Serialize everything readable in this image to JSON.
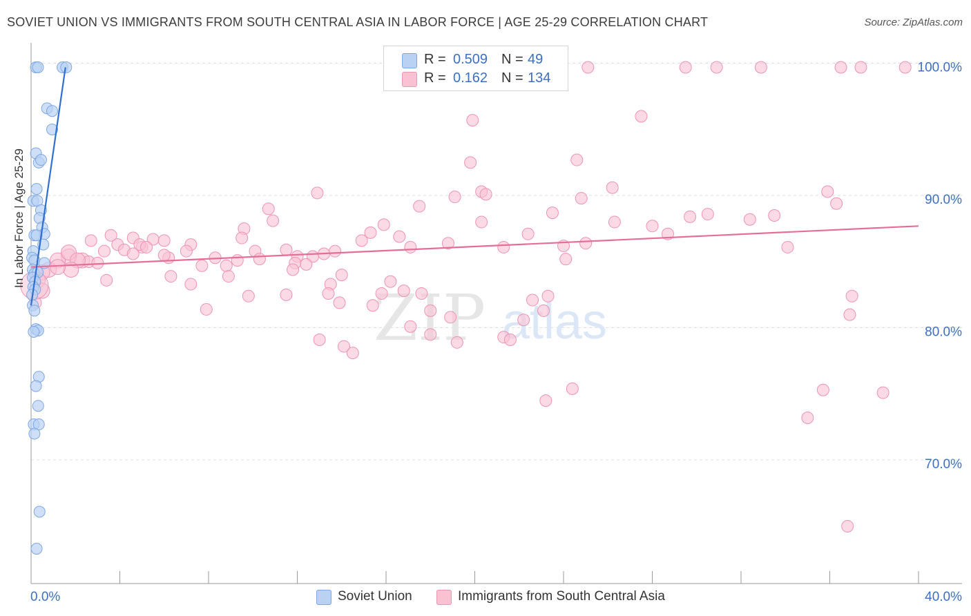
{
  "title": "SOVIET UNION VS IMMIGRANTS FROM SOUTH CENTRAL ASIA IN LABOR FORCE | AGE 25-29 CORRELATION CHART",
  "source": "Source: ZipAtlas.com",
  "watermark": {
    "zip": "ZIP",
    "atlas": "atlas"
  },
  "legend_top": {
    "r_label": "R =",
    "n_label": "N =",
    "rows": [
      {
        "series": "Soviet Union",
        "r": "0.509",
        "n": "49"
      },
      {
        "series": "Immigrants from South Central Asia",
        "r": "0.162",
        "n": "134"
      }
    ]
  },
  "colors": {
    "blue_fill": "#b9d1f3",
    "blue_stroke": "#7da7e2",
    "blue_line": "#2f6fd0",
    "pink_fill": "#f8c2d3",
    "pink_stroke": "#ee93b1",
    "pink_line": "#e46e98",
    "value_text": "#3b6fc4",
    "grid": "#dddddd",
    "axis": "#999999"
  },
  "chart_data": {
    "type": "scatter",
    "title": "SOVIET UNION VS IMMIGRANTS FROM SOUTH CENTRAL ASIA IN LABOR FORCE | AGE 25-29 CORRELATION CHART",
    "xlabel": "",
    "ylabel": "In Labor Force | Age 25-29",
    "xlim": [
      0,
      40
    ],
    "ylim": [
      60.5,
      101.5
    ],
    "x_tick_labels": [
      "0.0%",
      "40.0%"
    ],
    "y_ticks": [
      70,
      80,
      90,
      100
    ],
    "y_tick_labels": [
      "70.0%",
      "80.0%",
      "90.0%",
      "100.0%"
    ],
    "grid": true,
    "legend_position": "bottom",
    "series": [
      {
        "name": "Soviet Union",
        "color": "#7da7e2",
        "trend": {
          "x": [
            0.0,
            1.55
          ],
          "y": [
            82.0,
            100.0
          ]
        },
        "points": [
          [
            0.22,
            100.0
          ],
          [
            0.31,
            100.0
          ],
          [
            1.42,
            100.0
          ],
          [
            1.58,
            100.0
          ],
          [
            0.72,
            96.9
          ],
          [
            0.95,
            96.7
          ],
          [
            0.95,
            95.3
          ],
          [
            0.22,
            93.5
          ],
          [
            0.35,
            92.8
          ],
          [
            0.45,
            93.0
          ],
          [
            0.25,
            90.8
          ],
          [
            0.1,
            89.9
          ],
          [
            0.28,
            89.9
          ],
          [
            0.45,
            89.2
          ],
          [
            0.38,
            88.6
          ],
          [
            0.5,
            87.9
          ],
          [
            0.6,
            87.4
          ],
          [
            0.15,
            87.3
          ],
          [
            0.25,
            87.3
          ],
          [
            0.55,
            86.6
          ],
          [
            0.1,
            86.1
          ],
          [
            0.05,
            85.6
          ],
          [
            0.15,
            85.4
          ],
          [
            0.6,
            85.2
          ],
          [
            0.08,
            84.7
          ],
          [
            0.15,
            84.4
          ],
          [
            0.3,
            84.5
          ],
          [
            0.08,
            84.1
          ],
          [
            0.18,
            83.8
          ],
          [
            0.1,
            83.4
          ],
          [
            0.18,
            83.2
          ],
          [
            0.05,
            82.8
          ],
          [
            0.08,
            82.0
          ],
          [
            0.15,
            81.6
          ],
          [
            0.22,
            80.2
          ],
          [
            0.32,
            80.1
          ],
          [
            0.12,
            80.0
          ],
          [
            0.35,
            76.6
          ],
          [
            0.22,
            75.9
          ],
          [
            0.32,
            74.4
          ],
          [
            0.12,
            73.0
          ],
          [
            0.35,
            73.0
          ],
          [
            0.15,
            72.3
          ],
          [
            0.38,
            66.4
          ],
          [
            0.25,
            63.6
          ]
        ]
      },
      {
        "name": "Immigrants from South Central Asia",
        "color": "#ee93b1",
        "trend": {
          "x": [
            0.0,
            40.0
          ],
          "y": [
            84.9,
            88.0
          ]
        },
        "points": [
          [
            25.1,
            100.0
          ],
          [
            29.5,
            100.0
          ],
          [
            30.9,
            100.0
          ],
          [
            32.9,
            100.0
          ],
          [
            36.5,
            100.0
          ],
          [
            37.4,
            100.0
          ],
          [
            39.4,
            100.0
          ],
          [
            19.9,
            96.0
          ],
          [
            27.5,
            96.3
          ],
          [
            19.8,
            92.8
          ],
          [
            24.6,
            93.0
          ],
          [
            12.9,
            90.5
          ],
          [
            19.1,
            90.2
          ],
          [
            20.3,
            90.6
          ],
          [
            20.5,
            90.4
          ],
          [
            24.8,
            90.1
          ],
          [
            26.2,
            90.9
          ],
          [
            35.9,
            90.6
          ],
          [
            36.3,
            89.7
          ],
          [
            10.7,
            89.3
          ],
          [
            17.5,
            89.5
          ],
          [
            23.5,
            89.0
          ],
          [
            29.7,
            88.7
          ],
          [
            30.5,
            88.9
          ],
          [
            32.4,
            88.5
          ],
          [
            33.5,
            88.8
          ],
          [
            20.3,
            88.3
          ],
          [
            10.9,
            88.4
          ],
          [
            15.9,
            88.1
          ],
          [
            26.3,
            88.3
          ],
          [
            28,
            88.0
          ],
          [
            9.6,
            87.8
          ],
          [
            15.3,
            87.5
          ],
          [
            22.4,
            87.4
          ],
          [
            28.7,
            87.4
          ],
          [
            3.6,
            87.3
          ],
          [
            4.6,
            87.1
          ],
          [
            5.5,
            87.0
          ],
          [
            9.5,
            87.1
          ],
          [
            14.9,
            86.9
          ],
          [
            16.6,
            87.2
          ],
          [
            18.8,
            86.7
          ],
          [
            25.0,
            86.7
          ],
          [
            2.7,
            86.9
          ],
          [
            3.9,
            86.6
          ],
          [
            5.0,
            86.4
          ],
          [
            6.0,
            86.9
          ],
          [
            7.2,
            86.6
          ],
          [
            21.3,
            86.4
          ],
          [
            24.0,
            86.5
          ],
          [
            34.1,
            86.4
          ],
          [
            3.3,
            86.1
          ],
          [
            7.0,
            86.1
          ],
          [
            10.1,
            86.1
          ],
          [
            13.7,
            86.1
          ],
          [
            11.5,
            86.2
          ],
          [
            17.1,
            86.4
          ],
          [
            4.2,
            86.2
          ],
          [
            4.9,
            86.6
          ],
          [
            5.2,
            86.4
          ],
          [
            6.2,
            85.6
          ],
          [
            4.6,
            85.9
          ],
          [
            6.0,
            85.8
          ],
          [
            12.0,
            85.7
          ],
          [
            12.7,
            85.7
          ],
          [
            13.2,
            85.9
          ],
          [
            2.3,
            85.4
          ],
          [
            2.6,
            85.3
          ],
          [
            3.0,
            85.2
          ],
          [
            1.7,
            85.7
          ],
          [
            1.2,
            85.4
          ],
          [
            1.7,
            86.0
          ],
          [
            2.1,
            85.4
          ],
          [
            8.3,
            85.6
          ],
          [
            9.3,
            85.4
          ],
          [
            10.3,
            85.5
          ],
          [
            11.9,
            85.2
          ],
          [
            12.4,
            85.1
          ],
          [
            8.8,
            85.0
          ],
          [
            7.7,
            85.0
          ],
          [
            1.8,
            84.7
          ],
          [
            0.8,
            84.7
          ],
          [
            0.5,
            84.5
          ],
          [
            1.2,
            84.9
          ],
          [
            11.8,
            84.7
          ],
          [
            14.0,
            84.3
          ],
          [
            24.1,
            85.5
          ],
          [
            0.3,
            83.9
          ],
          [
            3.4,
            83.9
          ],
          [
            6.3,
            84.2
          ],
          [
            8.9,
            84.2
          ],
          [
            13.5,
            83.6
          ],
          [
            16.2,
            83.8
          ],
          [
            7.2,
            83.6
          ],
          [
            0.5,
            83.1
          ],
          [
            0.2,
            82.2
          ],
          [
            13.4,
            82.9
          ],
          [
            16.8,
            83.1
          ],
          [
            15.8,
            82.9
          ],
          [
            17.6,
            82.9
          ],
          [
            9.8,
            82.7
          ],
          [
            11.5,
            82.8
          ],
          [
            13.9,
            82.2
          ],
          [
            15.4,
            82.0
          ],
          [
            22.6,
            82.4
          ],
          [
            23.3,
            82.7
          ],
          [
            7.9,
            81.7
          ],
          [
            18.0,
            81.6
          ],
          [
            18.9,
            81.1
          ],
          [
            23.1,
            81.6
          ],
          [
            37.0,
            82.7
          ],
          [
            36.9,
            81.3
          ],
          [
            22.2,
            80.9
          ],
          [
            17.1,
            80.4
          ],
          [
            18.0,
            79.8
          ],
          [
            21.3,
            79.6
          ],
          [
            13.0,
            79.4
          ],
          [
            19.2,
            79.2
          ],
          [
            14.1,
            78.9
          ],
          [
            14.5,
            78.4
          ],
          [
            21.6,
            79.4
          ],
          [
            24.4,
            75.7
          ],
          [
            35.7,
            75.6
          ],
          [
            38.4,
            75.4
          ],
          [
            23.2,
            74.8
          ],
          [
            35.0,
            73.5
          ],
          [
            36.8,
            65.3
          ]
        ]
      }
    ]
  }
}
